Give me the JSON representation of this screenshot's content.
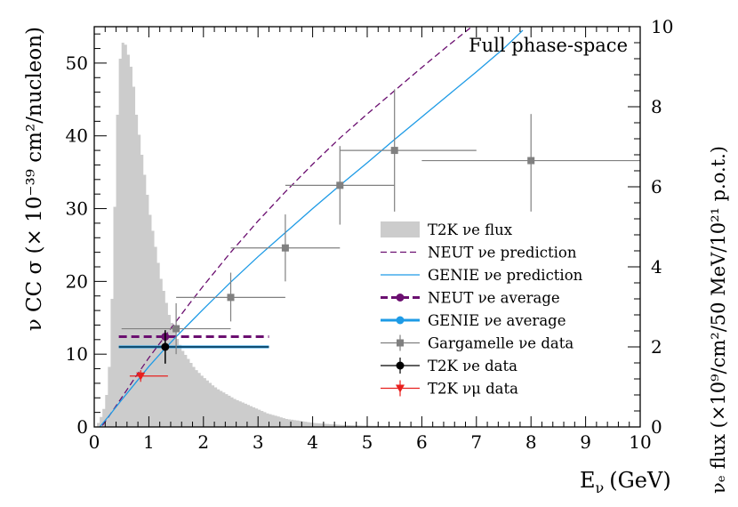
{
  "chart_data": {
    "type": "scatter",
    "title": "Full phase-space",
    "xlabel": "E",
    "xlabel_sub": "ν",
    "xlabel_unit": "(GeV)",
    "ylabel": "ν CC σ (× 10⁻³⁹ cm²/nucleon)",
    "y2label": "νₑ flux (×10⁹/cm²/50 MeV/10²¹ p.o.t.)",
    "xlim": [
      0,
      10
    ],
    "ylim": [
      0,
      55
    ],
    "y2lim": [
      0,
      10
    ],
    "x_ticks": [
      "0",
      "1",
      "2",
      "3",
      "4",
      "5",
      "6",
      "7",
      "8",
      "9",
      "10"
    ],
    "y_ticks": [
      "0",
      "10",
      "20",
      "30",
      "40",
      "50"
    ],
    "y2_ticks": [
      "0",
      "2",
      "4",
      "6",
      "8",
      "10"
    ],
    "flux": {
      "name": "T2K νe flux",
      "bin_width": 0.05,
      "color": "#cccccc",
      "values": [
        0,
        0.1,
        0.25,
        0.45,
        0.8,
        1.5,
        3.2,
        5.5,
        7.8,
        9.2,
        9.6,
        9.55,
        9.3,
        9.0,
        8.5,
        7.8,
        7.3,
        6.8,
        6.3,
        5.8,
        5.3,
        4.9,
        4.5,
        4.1,
        3.7,
        3.4,
        3.1,
        2.8,
        2.6,
        2.4,
        2.2,
        2.05,
        1.9,
        1.8,
        1.7,
        1.6,
        1.5,
        1.42,
        1.35,
        1.28,
        1.22,
        1.16,
        1.1,
        1.04,
        0.99,
        0.94,
        0.9,
        0.86,
        0.82,
        0.78,
        0.74,
        0.7,
        0.67,
        0.64,
        0.61,
        0.58,
        0.55,
        0.52,
        0.49,
        0.46,
        0.43,
        0.4,
        0.37,
        0.34,
        0.32,
        0.3,
        0.28,
        0.26,
        0.24,
        0.22,
        0.2,
        0.19,
        0.18,
        0.17,
        0.16,
        0.15,
        0.14,
        0.13,
        0.12,
        0.11,
        0.1,
        0.095,
        0.09,
        0.085,
        0.08,
        0.075,
        0.07,
        0.065,
        0.06,
        0.055,
        0.05,
        0.048,
        0.046,
        0.044,
        0.042,
        0.04,
        0.038,
        0.036,
        0.034,
        0.032,
        0.03,
        0.029,
        0.028,
        0.027,
        0.026,
        0.025,
        0.024,
        0.023,
        0.022,
        0.021,
        0.02,
        0.019,
        0.018,
        0.017,
        0.016,
        0.015,
        0.014,
        0.013,
        0.012,
        0.011,
        0.01,
        0.01,
        0.009,
        0.009,
        0.008,
        0.008,
        0.007,
        0.007,
        0.006,
        0.006,
        0.005,
        0.005,
        0.005,
        0.004,
        0.004,
        0.004,
        0.003,
        0.003,
        0.003,
        0.003,
        0.002,
        0.002,
        0.002,
        0.002,
        0.002,
        0.002,
        0.001,
        0.001,
        0.001,
        0.001,
        0.001,
        0.001,
        0.001,
        0.001,
        0.001,
        0.001,
        0.001,
        0.001,
        0.001,
        0.001,
        0.001,
        0.001,
        0.001,
        0.001,
        0.001,
        0.001,
        0.001,
        0.001,
        0.001,
        0.001,
        0.001,
        0.001,
        0.001,
        0.001,
        0.001,
        0.001,
        0.001,
        0.001,
        0.001,
        0.001,
        0.001,
        0.001,
        0.001,
        0.001,
        0.001,
        0.001,
        0.001,
        0.001,
        0.001,
        0.001,
        0.001,
        0.001,
        0.001,
        0.001,
        0.001,
        0.001,
        0.001,
        0.001,
        0.001,
        0.001
      ]
    },
    "neut_prediction": {
      "name": "NEUT νe prediction",
      "color": "#6b0f70",
      "x": [
        0.15,
        0.3,
        0.5,
        0.75,
        1.0,
        1.25,
        1.5,
        1.75,
        2.0,
        2.5,
        3.0,
        3.5,
        4.0,
        4.5,
        5.0,
        5.5,
        6.0,
        6.5,
        7.0,
        7.1
      ],
      "y": [
        0.2,
        1.8,
        4.0,
        6.8,
        9.5,
        12.0,
        14.5,
        17.0,
        19.4,
        24.0,
        28.3,
        32.3,
        36.1,
        39.7,
        43.0,
        46.2,
        49.4,
        52.5,
        55.5,
        56.0
      ]
    },
    "genie_prediction": {
      "name": "GENIE νe prediction",
      "color": "#1e9be6",
      "x": [
        0.1,
        0.3,
        0.5,
        0.75,
        1.0,
        1.25,
        1.5,
        1.75,
        2.0,
        2.5,
        3.0,
        3.5,
        4.0,
        4.5,
        5.0,
        5.5,
        6.0,
        6.5,
        7.0,
        7.5,
        7.85
      ],
      "y": [
        0.0,
        1.8,
        3.7,
        6.0,
        8.3,
        10.4,
        12.4,
        14.3,
        16.2,
        19.9,
        23.4,
        26.7,
        30.0,
        33.2,
        36.3,
        39.5,
        42.6,
        45.7,
        48.8,
        52.0,
        54.5
      ]
    },
    "neut_average": {
      "name": "NEUT νe average",
      "color": "#6b0f70",
      "x": 1.3,
      "y": 12.4,
      "xmin": 0.45,
      "xmax": 3.2
    },
    "genie_average": {
      "name": "GENIE νe average",
      "color": "#1e9be6",
      "x": 1.3,
      "y": 11.0,
      "xmin": 0.45,
      "xmax": 3.2
    },
    "gargamelle": {
      "name": "Gargamelle νe data",
      "color": "#808080",
      "points": [
        {
          "x": 1.5,
          "y": 13.5,
          "xlo": 0.5,
          "xhi": 2.5,
          "ylo": 10.0,
          "yhi": 17.0
        },
        {
          "x": 2.5,
          "y": 17.8,
          "xlo": 1.5,
          "xhi": 3.5,
          "ylo": 14.5,
          "yhi": 21.2
        },
        {
          "x": 3.5,
          "y": 24.6,
          "xlo": 2.5,
          "xhi": 4.5,
          "ylo": 20.0,
          "yhi": 29.2
        },
        {
          "x": 4.5,
          "y": 33.2,
          "xlo": 3.5,
          "xhi": 5.5,
          "ylo": 27.8,
          "yhi": 38.6
        },
        {
          "x": 5.5,
          "y": 38.0,
          "xlo": 4.5,
          "xhi": 7.0,
          "ylo": 29.6,
          "yhi": 46.4
        },
        {
          "x": 8.0,
          "y": 36.6,
          "xlo": 6.0,
          "xhi": 10.0,
          "ylo": 29.6,
          "yhi": 43.0
        }
      ]
    },
    "t2k_nue": {
      "name": "T2K νe data",
      "color": "#000000",
      "x": 1.3,
      "y": 11.0,
      "ylo": 8.7,
      "yhi": 13.3
    },
    "t2k_numu": {
      "name": "T2K νμ data",
      "color": "#e8201e",
      "x": 0.85,
      "y": 7.0,
      "xlo": 0.65,
      "xhi": 1.35,
      "ylo": 6.2,
      "yhi": 7.8
    },
    "legend": {
      "position": "center-right",
      "entries": [
        "T2K νe flux",
        "NEUT νe prediction",
        "GENIE νe prediction",
        "NEUT νe average",
        "GENIE νe average",
        "Gargamelle νe data",
        "T2K νe data",
        "T2K νμ data"
      ]
    }
  }
}
